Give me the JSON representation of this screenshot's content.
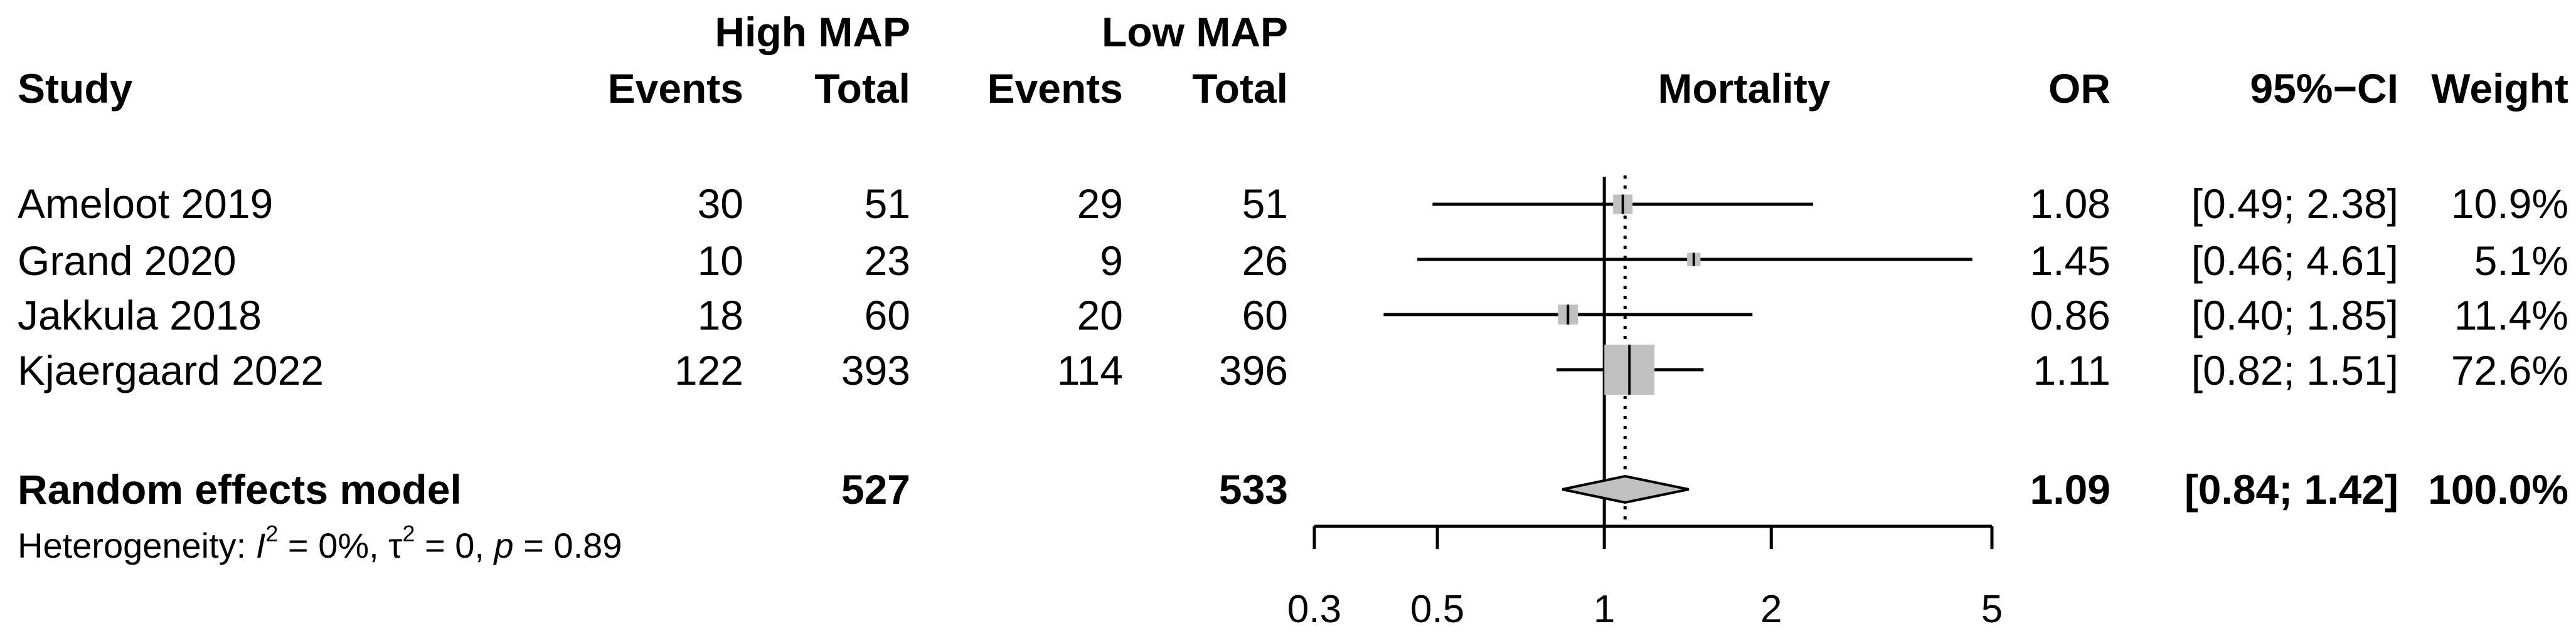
{
  "headers": {
    "group1": "High MAP",
    "group2": "Low MAP",
    "study": "Study",
    "events1": "Events",
    "total1": "Total",
    "events2": "Events",
    "total2": "Total",
    "plot_label": "Mortality",
    "or": "OR",
    "ci": "95%−CI",
    "weight": "Weight"
  },
  "studies": [
    {
      "name": "Ameloot 2019",
      "events1": "30",
      "total1": "51",
      "events2": "29",
      "total2": "51",
      "or": "1.08",
      "ci": "[0.49; 2.38]",
      "weight": "10.9%"
    },
    {
      "name": "Grand 2020",
      "events1": "10",
      "total1": "23",
      "events2": "9",
      "total2": "26",
      "or": "1.45",
      "ci": "[0.46; 4.61]",
      "weight": "5.1%"
    },
    {
      "name": "Jakkula 2018",
      "events1": "18",
      "total1": "60",
      "events2": "20",
      "total2": "60",
      "or": "0.86",
      "ci": "[0.40; 1.85]",
      "weight": "11.4%"
    },
    {
      "name": "Kjaergaard 2022",
      "events1": "122",
      "total1": "393",
      "events2": "114",
      "total2": "396",
      "or": "1.11",
      "ci": "[0.82; 1.51]",
      "weight": "72.6%"
    }
  ],
  "summary": {
    "name": "Random effects model",
    "total1": "527",
    "total2": "533",
    "or": "1.09",
    "ci": "[0.84; 1.42]",
    "weight": "100.0%"
  },
  "heterogeneity": {
    "prefix": "Heterogeneity: ",
    "i_symbol": "I",
    "i_sup": "2",
    "i_value": " = 0%, ",
    "tau_symbol": "τ",
    "tau_sup": "2",
    "tau_value": " = 0, ",
    "p_symbol": "p",
    "p_value": " = 0.89"
  },
  "chart_data": {
    "type": "forest",
    "xlabel": "Mortality",
    "x_scale": "log",
    "xlim": [
      0.3,
      5
    ],
    "x_ticks": [
      0.3,
      0.5,
      1,
      2,
      5
    ],
    "x_tick_labels": [
      "0.3",
      "0.5",
      "1",
      "2",
      "5"
    ],
    "reference_line": 1,
    "summary_line": 1.09,
    "studies": [
      {
        "name": "Ameloot 2019",
        "or": 1.08,
        "lower": 0.49,
        "upper": 2.38,
        "weight": 10.9
      },
      {
        "name": "Grand 2020",
        "or": 1.45,
        "lower": 0.46,
        "upper": 4.61,
        "weight": 5.1
      },
      {
        "name": "Jakkula 2018",
        "or": 0.86,
        "lower": 0.4,
        "upper": 1.85,
        "weight": 11.4
      },
      {
        "name": "Kjaergaard 2022",
        "or": 1.11,
        "lower": 0.82,
        "upper": 1.51,
        "weight": 72.6
      }
    ],
    "pooled": {
      "name": "Random effects model",
      "or": 1.09,
      "lower": 0.84,
      "upper": 1.42
    },
    "colors": {
      "box": "#c0c0c0",
      "line": "#000000"
    }
  }
}
